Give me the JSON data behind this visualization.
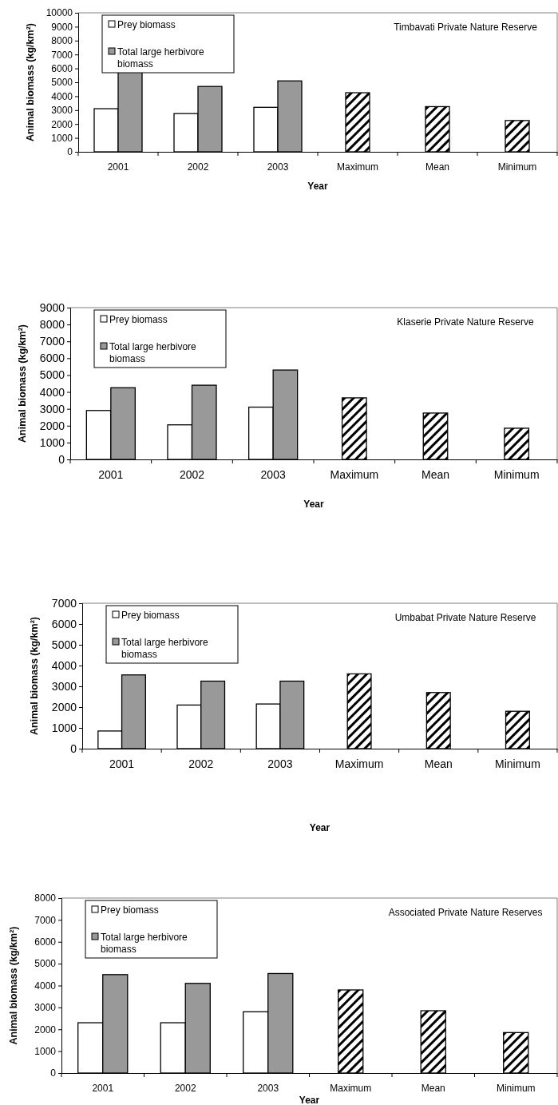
{
  "chart_data": [
    {
      "type": "bar",
      "title": "Timbavati Private Nature Reserve",
      "xlabel": "Year",
      "ylabel": "Animal biomass (kg/km²)",
      "categories": [
        "2001",
        "2002",
        "2003",
        "Maximum",
        "Mean",
        "Minimum"
      ],
      "ylim": [
        0,
        10000
      ],
      "yticks": [
        0,
        1000,
        2000,
        3000,
        4000,
        5000,
        6000,
        7000,
        8000,
        9000,
        10000
      ],
      "legend": "top left",
      "series": [
        {
          "name": "Prey biomass",
          "color": "#ffffff",
          "values": [
            3100,
            2750,
            3200,
            null,
            null,
            null
          ]
        },
        {
          "name": "Total large herbivore biomass",
          "color": "#999999",
          "values": [
            5750,
            4700,
            5100,
            null,
            null,
            null
          ]
        },
        {
          "color": "#000000",
          "values": [
            null,
            null,
            null,
            4250,
            3250,
            2250
          ]
        }
      ]
    },
    {
      "type": "bar",
      "title": "Klaserie Private Nature Reserve",
      "xlabel": "Year",
      "ylabel": "Animal biomass (kg/km²)",
      "categories": [
        "2001",
        "2002",
        "2003",
        "Maximum",
        "Mean",
        "Minimum"
      ],
      "ylim": [
        0,
        9000
      ],
      "yticks": [
        0,
        1000,
        2000,
        3000,
        4000,
        5000,
        6000,
        7000,
        8000,
        9000
      ],
      "legend": "top left",
      "series": [
        {
          "name": "Prey biomass",
          "color": "#ffffff",
          "values": [
            2900,
            2050,
            3100,
            null,
            null,
            null
          ]
        },
        {
          "name": "Total large herbivore biomass",
          "color": "#999999",
          "values": [
            4250,
            4400,
            5300,
            null,
            null,
            null
          ]
        },
        {
          "color": "#000000",
          "values": [
            null,
            null,
            null,
            3650,
            2750,
            1850
          ]
        }
      ]
    },
    {
      "type": "bar",
      "title": "Umbabat Private Nature Reserve",
      "xlabel": "Year",
      "ylabel": "Animal biomass (kg/km²)",
      "categories": [
        "2001",
        "2002",
        "2003",
        "Maximum",
        "Mean",
        "Minimum"
      ],
      "ylim": [
        0,
        7000
      ],
      "yticks": [
        0,
        1000,
        2000,
        3000,
        4000,
        5000,
        6000,
        7000
      ],
      "legend": "top left",
      "series": [
        {
          "name": "Prey biomass",
          "color": "#ffffff",
          "values": [
            850,
            2100,
            2150,
            null,
            null,
            null
          ]
        },
        {
          "name": "Total large herbivore biomass",
          "color": "#999999",
          "values": [
            3550,
            3250,
            3250,
            null,
            null,
            null
          ]
        },
        {
          "color": "#000000",
          "values": [
            null,
            null,
            null,
            3600,
            2700,
            1800
          ]
        }
      ]
    },
    {
      "type": "bar",
      "title": "Associated Private Nature Reserves",
      "xlabel": "Year",
      "ylabel": "Animal biomass (kg/km²)",
      "categories": [
        "2001",
        "2002",
        "2003",
        "Maximum",
        "Mean",
        "Minimum"
      ],
      "ylim": [
        0,
        8000
      ],
      "yticks": [
        0,
        1000,
        2000,
        3000,
        4000,
        5000,
        6000,
        7000,
        8000
      ],
      "legend": "top left",
      "series": [
        {
          "name": "Prey biomass",
          "color": "#ffffff",
          "values": [
            2300,
            2300,
            2800,
            null,
            null,
            null
          ]
        },
        {
          "name": "Total large herbivore biomass",
          "color": "#999999",
          "values": [
            4500,
            4100,
            4550,
            null,
            null,
            null
          ]
        },
        {
          "color": "#000000",
          "values": [
            null,
            null,
            null,
            3800,
            2850,
            1850
          ]
        }
      ]
    }
  ]
}
